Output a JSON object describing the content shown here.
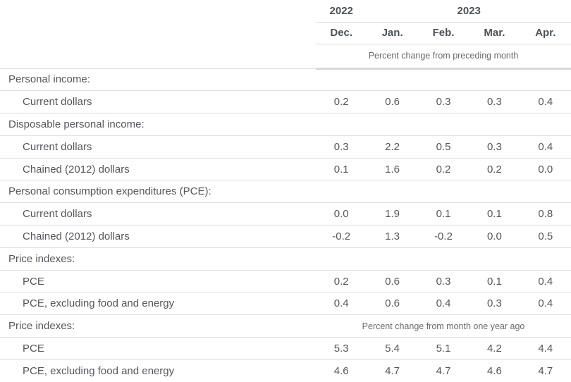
{
  "table": {
    "years": [
      {
        "label": "2022",
        "span_months": 1
      },
      {
        "label": "2023",
        "span_months": 4
      }
    ],
    "months": [
      "Dec.",
      "Jan.",
      "Feb.",
      "Mar.",
      "Apr."
    ],
    "unit_notes": {
      "monthly": "Percent change from preceding month",
      "yearly": "Percent change from month one year ago"
    },
    "colors": {
      "text": "#55565b",
      "header_text": "#4e5256",
      "note_text": "#68696d",
      "row_border": "#e0e0e0",
      "header_border": "#dcdcdc",
      "thick_border": "#d8d8d8"
    },
    "rows": [
      {
        "type": "section",
        "label": "Personal income:"
      },
      {
        "type": "data",
        "label": "Current dollars",
        "values": [
          "0.2",
          "0.6",
          "0.3",
          "0.3",
          "0.4"
        ]
      },
      {
        "type": "section",
        "label": "Disposable personal income:"
      },
      {
        "type": "data",
        "label": "Current dollars",
        "values": [
          "0.3",
          "2.2",
          "0.5",
          "0.3",
          "0.4"
        ]
      },
      {
        "type": "data",
        "label": "Chained (2012) dollars",
        "values": [
          "0.1",
          "1.6",
          "0.2",
          "0.2",
          "0.0"
        ]
      },
      {
        "type": "section",
        "label": "Personal consumption expenditures (PCE):"
      },
      {
        "type": "data",
        "label": "Current dollars",
        "values": [
          "0.0",
          "1.9",
          "0.1",
          "0.1",
          "0.8"
        ]
      },
      {
        "type": "data",
        "label": "Chained (2012) dollars",
        "values": [
          "-0.2",
          "1.3",
          "-0.2",
          "0.0",
          "0.5"
        ]
      },
      {
        "type": "section",
        "label": "Price indexes:"
      },
      {
        "type": "data",
        "label": "PCE",
        "values": [
          "0.2",
          "0.6",
          "0.3",
          "0.1",
          "0.4"
        ]
      },
      {
        "type": "data",
        "label": "PCE, excluding food and energy",
        "values": [
          "0.4",
          "0.6",
          "0.4",
          "0.3",
          "0.4"
        ]
      },
      {
        "type": "section",
        "label": "Price indexes:",
        "note": "Percent change from month one year ago"
      },
      {
        "type": "data",
        "label": "PCE",
        "values": [
          "5.3",
          "5.4",
          "5.1",
          "4.2",
          "4.4"
        ]
      },
      {
        "type": "data",
        "label": "PCE, excluding food and energy",
        "values": [
          "4.6",
          "4.7",
          "4.7",
          "4.6",
          "4.7"
        ]
      }
    ]
  }
}
